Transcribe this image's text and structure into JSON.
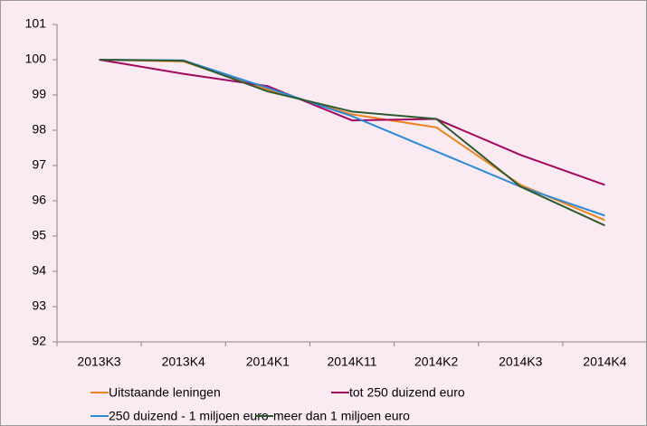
{
  "chart_data": {
    "type": "line",
    "categories": [
      "2013K3",
      "2013K4",
      "2014K1",
      "2014K11",
      "2014K2",
      "2014K3",
      "2014K4"
    ],
    "series": [
      {
        "name": "Uitstaande leningen",
        "color": "#ee8420",
        "values": [
          100,
          99.95,
          99.15,
          98.45,
          98.08,
          96.45,
          95.45
        ]
      },
      {
        "name": "tot 250 duizend euro",
        "color": "#a3085e",
        "values": [
          100,
          99.6,
          99.25,
          98.28,
          98.32,
          97.3,
          96.45
        ]
      },
      {
        "name": "250 duizend - 1 miljoen euro",
        "color": "#2e8ad8",
        "values": [
          100,
          99.98,
          99.2,
          98.4,
          97.4,
          96.4,
          95.58
        ]
      },
      {
        "name": "meer dan 1 miljoen euro",
        "color": "#2f5a30",
        "values": [
          100,
          99.97,
          99.1,
          98.53,
          98.32,
          96.4,
          95.3
        ]
      }
    ],
    "ylim": [
      92,
      101
    ],
    "yticks": [
      92,
      93,
      94,
      95,
      96,
      97,
      98,
      99,
      100,
      101
    ],
    "grid": false
  }
}
